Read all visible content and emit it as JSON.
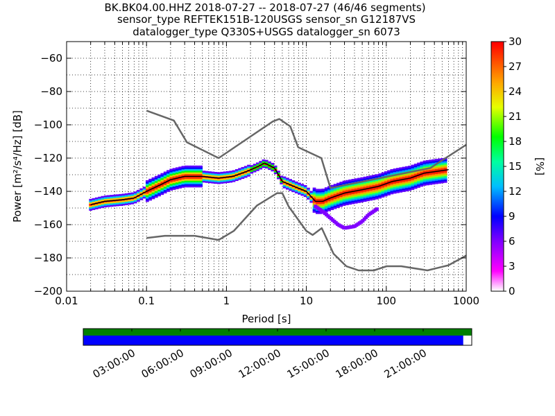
{
  "title": {
    "line1": "BK.BK04.00.HHZ   2018-07-27 -- 2018-07-27  (46/46 segments)",
    "line2": "sensor_type REFTEK151B-120USGS sensor_sn G12187VS",
    "line3": "datalogger_type Q330S+USGS datalogger_sn 6073"
  },
  "chart_data": {
    "type": "heatmap",
    "xlabel": "Period [s]",
    "ylabel": "Power [m²/s⁴/Hz] [dB]",
    "x_scale": "log",
    "xlim": [
      0.01,
      1000
    ],
    "ylim": [
      -200,
      -50
    ],
    "x_ticks": [
      {
        "value": 0.01,
        "label": "0.01"
      },
      {
        "value": 0.1,
        "label": "0.1"
      },
      {
        "value": 1,
        "label": "1"
      },
      {
        "value": 10,
        "label": "10"
      },
      {
        "value": 100,
        "label": "100"
      },
      {
        "value": 1000,
        "label": "1000"
      }
    ],
    "y_ticks": [
      -60,
      -80,
      -100,
      -120,
      -140,
      -160,
      -180,
      -200
    ],
    "colorbar": {
      "label": "[%]",
      "range": [
        0,
        30
      ],
      "ticks": [
        0,
        3,
        6,
        9,
        12,
        15,
        18,
        21,
        24,
        27,
        30
      ]
    },
    "noise_models": [
      {
        "name": "high",
        "color": "#666666",
        "points": [
          [
            0.1,
            -91.5
          ],
          [
            0.22,
            -97.4
          ],
          [
            0.32,
            -110.5
          ],
          [
            0.8,
            -120
          ],
          [
            3.8,
            -98
          ],
          [
            4.6,
            -96.5
          ],
          [
            6.3,
            -101
          ],
          [
            7.9,
            -113.5
          ],
          [
            15.4,
            -120
          ],
          [
            20,
            -138
          ],
          [
            354.8,
            -126
          ],
          [
            1000,
            -112
          ]
        ]
      },
      {
        "name": "low",
        "color": "#666666",
        "points": [
          [
            0.1,
            -168
          ],
          [
            0.17,
            -166.7
          ],
          [
            0.4,
            -166.7
          ],
          [
            0.8,
            -169.2
          ],
          [
            1.24,
            -163.7
          ],
          [
            2.4,
            -148.6
          ],
          [
            4.3,
            -141.1
          ],
          [
            5,
            -141.1
          ],
          [
            6,
            -149
          ],
          [
            10,
            -163.8
          ],
          [
            12,
            -166.2
          ],
          [
            15.6,
            -162.1
          ],
          [
            21.9,
            -177.5
          ],
          [
            31.6,
            -185
          ],
          [
            45,
            -187.5
          ],
          [
            70,
            -187.5
          ],
          [
            101,
            -185
          ],
          [
            154,
            -185
          ],
          [
            328,
            -187.5
          ],
          [
            600,
            -184.4
          ],
          [
            1000,
            -178.6
          ]
        ]
      }
    ],
    "mean_curve": {
      "color": "#000000",
      "points": [
        [
          0.02,
          -148
        ],
        [
          0.03,
          -146
        ],
        [
          0.05,
          -145
        ],
        [
          0.07,
          -144
        ],
        [
          0.1,
          -140
        ],
        [
          0.15,
          -136
        ],
        [
          0.2,
          -133
        ],
        [
          0.3,
          -131
        ],
        [
          0.5,
          -131
        ],
        [
          0.8,
          -132
        ],
        [
          1.2,
          -131
        ],
        [
          1.8,
          -128
        ],
        [
          2.5,
          -125
        ],
        [
          3,
          -123
        ],
        [
          4,
          -126
        ],
        [
          5,
          -134
        ],
        [
          7,
          -137
        ],
        [
          10,
          -140
        ],
        [
          13,
          -146
        ],
        [
          16,
          -146
        ],
        [
          20,
          -144
        ],
        [
          30,
          -141
        ],
        [
          50,
          -139
        ],
        [
          80,
          -137
        ],
        [
          120,
          -134
        ],
        [
          200,
          -132
        ],
        [
          300,
          -129
        ],
        [
          600,
          -127
        ]
      ]
    },
    "percentile_bands": [
      {
        "points": [
          [
            0.02,
            -148
          ],
          [
            0.04,
            -145
          ],
          [
            0.07,
            -144
          ],
          [
            0.1,
            -139
          ],
          [
            0.2,
            -132
          ],
          [
            0.3,
            -130
          ],
          [
            0.5,
            -131
          ],
          [
            0.8,
            -132
          ],
          [
            1.2,
            -130
          ],
          [
            2,
            -127
          ],
          [
            3,
            -122
          ],
          [
            4,
            -126
          ],
          [
            5,
            -133
          ],
          [
            8,
            -138
          ],
          [
            13,
            -144
          ],
          [
            16,
            -144
          ],
          [
            25,
            -141
          ],
          [
            50,
            -138
          ],
          [
            100,
            -135
          ],
          [
            200,
            -131
          ],
          [
            400,
            -127
          ],
          [
            600,
            -126
          ]
        ],
        "color": "#000080",
        "offset": 1.5
      },
      {
        "points": [
          [
            0.03,
            -147
          ],
          [
            0.06,
            -147
          ],
          [
            0.1,
            -143
          ],
          [
            0.2,
            -138
          ],
          [
            0.3,
            -136
          ],
          [
            0.5,
            -133
          ],
          [
            1,
            -133
          ],
          [
            2,
            -128
          ],
          [
            3,
            -124
          ],
          [
            5,
            -135
          ],
          [
            10,
            -142
          ],
          [
            15,
            -148
          ],
          [
            30,
            -144
          ],
          [
            60,
            -141
          ],
          [
            150,
            -137
          ],
          [
            400,
            -131
          ],
          [
            600,
            -130
          ]
        ],
        "color": "#2F4FFF",
        "offset": 0
      }
    ],
    "secondary_branch": {
      "points": [
        [
          13,
          -149
        ],
        [
          16,
          -152
        ],
        [
          20,
          -156
        ],
        [
          25,
          -160
        ],
        [
          30,
          -162
        ],
        [
          40,
          -161
        ],
        [
          50,
          -158
        ],
        [
          60,
          -154
        ],
        [
          80,
          -150
        ]
      ],
      "color": "#8000FF"
    }
  },
  "timeline": {
    "labels": [
      "03:00:00",
      "06:00:00",
      "09:00:00",
      "12:00:00",
      "15:00:00",
      "18:00:00",
      "21:00:00"
    ],
    "coverage_fraction": 0.978,
    "colors": {
      "top": "#008000",
      "bottom": "#0000FF"
    }
  }
}
